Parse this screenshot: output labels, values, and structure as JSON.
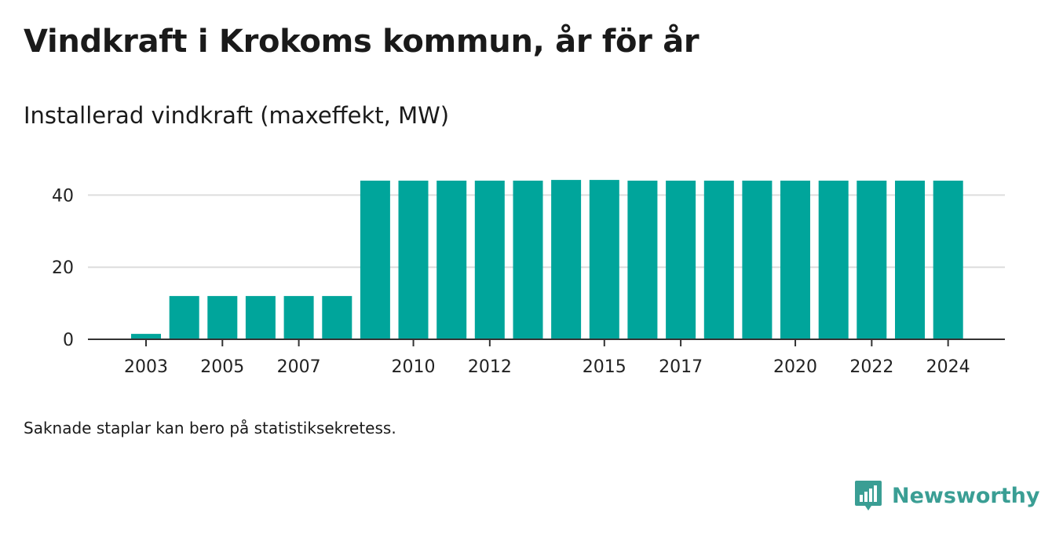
{
  "header": {
    "title": "Vindkraft i Krokoms kommun, år för år",
    "subtitle": "Installerad vindkraft (maxeffekt, MW)"
  },
  "footer": {
    "note": "Saknade staplar kan bero på statistiksekretess.",
    "brand": "Newsworthy"
  },
  "colors": {
    "bar": "#00a59b",
    "grid": "#dddddd",
    "axis": "#333333",
    "brand": "#3a9e94"
  },
  "icons": {
    "brand_logo": "bar-chart-speech-bubble-icon"
  },
  "chart_data": {
    "type": "bar",
    "title": "Installerad vindkraft (maxeffekt, MW)",
    "xlabel": "",
    "ylabel": "",
    "ylim": [
      0,
      45
    ],
    "yticks": [
      0,
      20,
      40
    ],
    "grid": true,
    "categories": [
      "2003",
      "2004",
      "2005",
      "2006",
      "2007",
      "2008",
      "2009",
      "2010",
      "2011",
      "2012",
      "2013",
      "2014",
      "2015",
      "2016",
      "2017",
      "2018",
      "2019",
      "2020",
      "2021",
      "2022",
      "2023",
      "2024"
    ],
    "values": [
      1.5,
      12,
      12,
      12,
      12,
      12,
      44,
      44,
      44,
      44,
      44,
      44.2,
      44.2,
      44,
      44,
      44,
      44,
      44,
      44,
      44,
      44,
      44
    ],
    "xtick_labels": [
      "2003",
      "2005",
      "2007",
      "2010",
      "2012",
      "2015",
      "2017",
      "2020",
      "2022",
      "2024"
    ]
  }
}
